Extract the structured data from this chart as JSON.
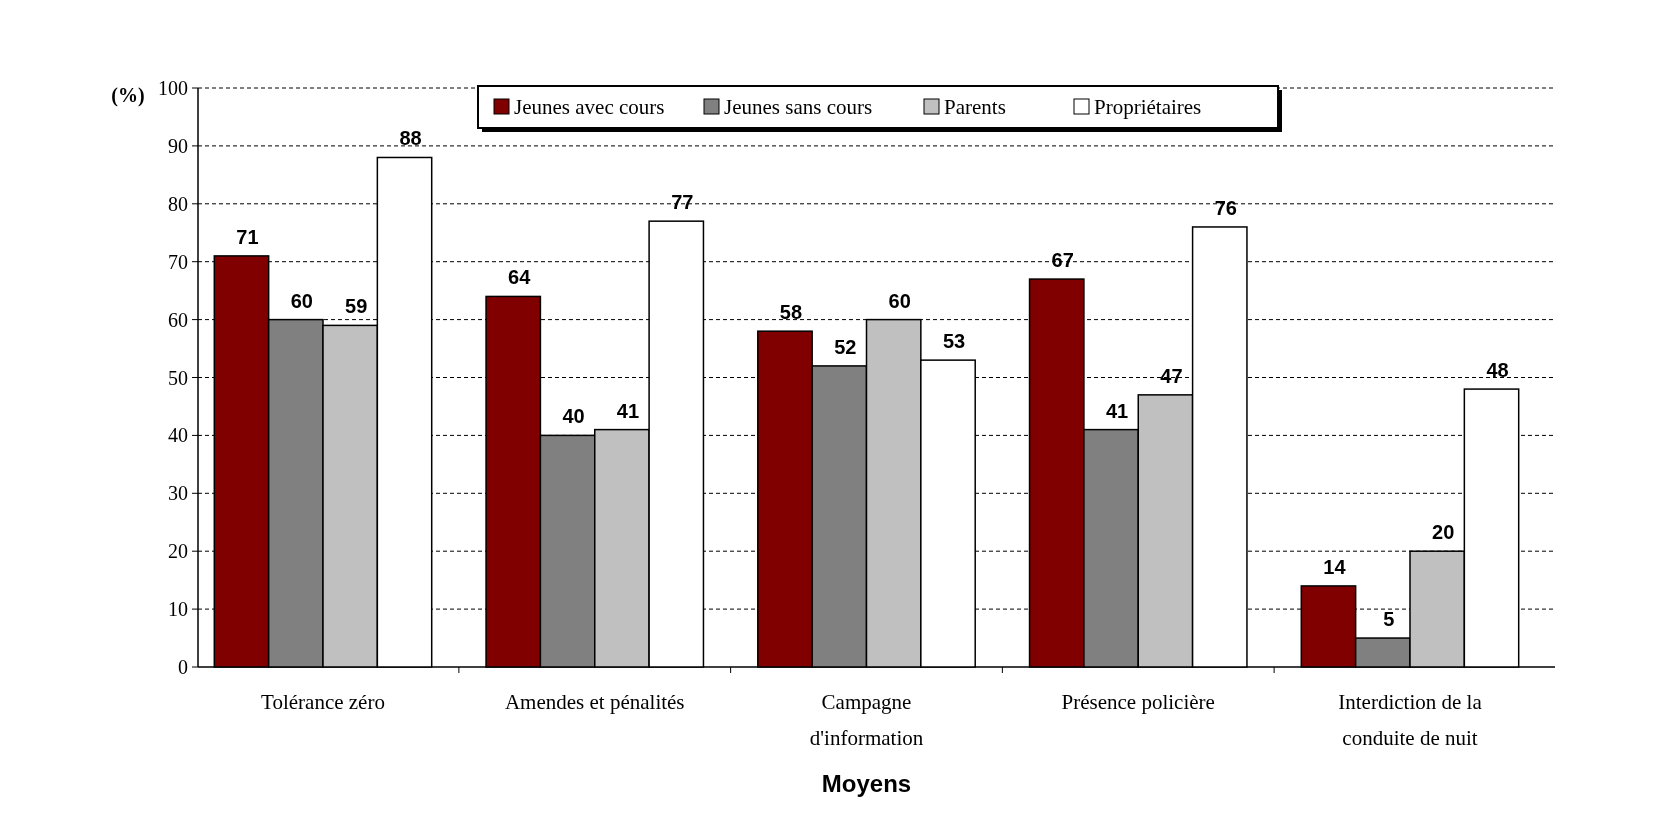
{
  "chart_data": {
    "type": "bar",
    "xlabel": "Moyens",
    "ylabel": "(%)",
    "categories": [
      "Tolérance zéro",
      "Amendes et pénalités",
      "Campagne d'information",
      "Présence policière",
      "Interdiction de la conduite de nuit"
    ],
    "series": [
      {
        "name": "Jeunes avec cours",
        "color": "#800000",
        "values": [
          71,
          64,
          58,
          67,
          14
        ]
      },
      {
        "name": "Jeunes sans cours",
        "color": "#808080",
        "values": [
          60,
          40,
          52,
          41,
          5
        ]
      },
      {
        "name": "Parents",
        "color": "#c0c0c0",
        "values": [
          59,
          41,
          60,
          47,
          20
        ]
      },
      {
        "name": "Propriétaires",
        "color": "#ffffff",
        "values": [
          88,
          77,
          53,
          76,
          48
        ]
      }
    ],
    "ylim": [
      0,
      100
    ],
    "yticks": [
      0,
      10,
      20,
      30,
      40,
      50,
      60,
      70,
      80,
      90,
      100
    ],
    "grid": "y",
    "legend": "top",
    "data_labels": true
  }
}
